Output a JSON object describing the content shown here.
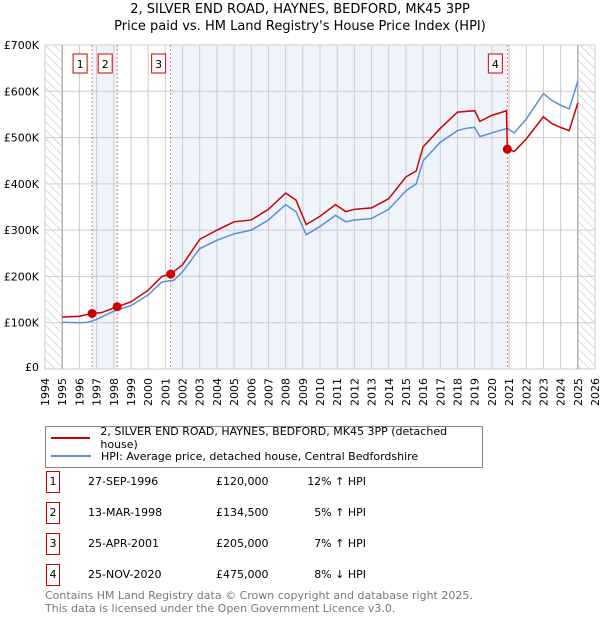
{
  "chart_data": {
    "type": "line",
    "title": "2, SILVER END ROAD, HAYNES, BEDFORD, MK45 3PP",
    "subtitle": "Price paid vs. HM Land Registry's House Price Index (HPI)",
    "xlim": [
      1994,
      2026
    ],
    "ylim": [
      0,
      700000
    ],
    "x_ticks": [
      "1994",
      "1995",
      "1996",
      "1997",
      "1998",
      "1999",
      "2000",
      "2001",
      "2002",
      "2003",
      "2004",
      "2005",
      "2006",
      "2007",
      "2008",
      "2009",
      "2010",
      "2011",
      "2012",
      "2013",
      "2014",
      "2015",
      "2016",
      "2017",
      "2018",
      "2019",
      "2020",
      "2021",
      "2022",
      "2023",
      "2024",
      "2025",
      "2026"
    ],
    "y_ticks": [
      {
        "v": 0,
        "label": "£0"
      },
      {
        "v": 100000,
        "label": "£100K"
      },
      {
        "v": 200000,
        "label": "£200K"
      },
      {
        "v": 300000,
        "label": "£300K"
      },
      {
        "v": 400000,
        "label": "£400K"
      },
      {
        "v": 500000,
        "label": "£500K"
      },
      {
        "v": 600000,
        "label": "£600K"
      },
      {
        "v": 700000,
        "label": "£700K"
      }
    ],
    "grid": true,
    "series": [
      {
        "name": "2, SILVER END ROAD, HAYNES, BEDFORD, MK45 3PP (detached house)",
        "color": "#cc0000",
        "points": [
          [
            1995,
            112000
          ],
          [
            1996,
            114000
          ],
          [
            1996.74,
            120000
          ],
          [
            1997.3,
            122000
          ],
          [
            1998.2,
            134500
          ],
          [
            1999,
            145000
          ],
          [
            2000,
            170000
          ],
          [
            2000.8,
            200000
          ],
          [
            2001.3,
            205000
          ],
          [
            2002,
            225000
          ],
          [
            2003,
            280000
          ],
          [
            2004,
            300000
          ],
          [
            2005,
            318000
          ],
          [
            2006,
            322000
          ],
          [
            2007,
            345000
          ],
          [
            2008,
            380000
          ],
          [
            2008.6,
            365000
          ],
          [
            2009.2,
            312000
          ],
          [
            2010,
            330000
          ],
          [
            2010.9,
            355000
          ],
          [
            2011.5,
            340000
          ],
          [
            2012,
            345000
          ],
          [
            2013,
            348000
          ],
          [
            2014,
            368000
          ],
          [
            2015,
            415000
          ],
          [
            2015.6,
            428000
          ],
          [
            2016,
            480000
          ],
          [
            2017,
            520000
          ],
          [
            2018,
            555000
          ],
          [
            2019,
            558000
          ],
          [
            2019.3,
            535000
          ],
          [
            2020,
            548000
          ],
          [
            2020.85,
            558000
          ],
          [
            2020.9,
            475000
          ],
          [
            2021.3,
            470000
          ],
          [
            2022,
            497000
          ],
          [
            2023,
            545000
          ],
          [
            2023.5,
            530000
          ],
          [
            2024,
            522000
          ],
          [
            2024.5,
            515000
          ],
          [
            2025,
            575000
          ]
        ]
      },
      {
        "name": "HPI: Average price, detached house, Central Bedfordshire",
        "color": "#5b8fd4",
        "points": [
          [
            1995,
            101000
          ],
          [
            1996,
            100000
          ],
          [
            1996.5,
            101000
          ],
          [
            1997,
            107000
          ],
          [
            1998,
            125000
          ],
          [
            1999,
            137000
          ],
          [
            2000,
            160000
          ],
          [
            2000.8,
            188000
          ],
          [
            2001.5,
            192000
          ],
          [
            2002,
            210000
          ],
          [
            2003,
            260000
          ],
          [
            2004,
            278000
          ],
          [
            2005,
            292000
          ],
          [
            2006,
            300000
          ],
          [
            2007,
            322000
          ],
          [
            2008,
            355000
          ],
          [
            2008.6,
            340000
          ],
          [
            2009.2,
            290000
          ],
          [
            2010,
            308000
          ],
          [
            2010.9,
            332000
          ],
          [
            2011.5,
            318000
          ],
          [
            2012,
            322000
          ],
          [
            2013,
            325000
          ],
          [
            2014,
            345000
          ],
          [
            2015,
            385000
          ],
          [
            2015.6,
            400000
          ],
          [
            2016,
            450000
          ],
          [
            2017,
            490000
          ],
          [
            2018,
            515000
          ],
          [
            2018.5,
            520000
          ],
          [
            2019,
            522000
          ],
          [
            2019.3,
            502000
          ],
          [
            2020,
            510000
          ],
          [
            2020.9,
            520000
          ],
          [
            2021.3,
            510000
          ],
          [
            2022,
            540000
          ],
          [
            2023,
            595000
          ],
          [
            2023.5,
            580000
          ],
          [
            2024,
            570000
          ],
          [
            2024.5,
            562000
          ],
          [
            2025,
            622000
          ]
        ]
      }
    ],
    "sales": [
      {
        "id": "1",
        "x": 1996.74,
        "date": "27-SEP-1996",
        "price": 120000,
        "price_label": "£120,000",
        "hpi": "12% ↑ HPI"
      },
      {
        "id": "2",
        "x": 1998.2,
        "date": "13-MAR-1998",
        "price": 134500,
        "price_label": "£134,500",
        "hpi": "5% ↑ HPI"
      },
      {
        "id": "3",
        "x": 2001.31,
        "date": "25-APR-2001",
        "price": 205000,
        "price_label": "£205,000",
        "hpi": "7% ↑ HPI"
      },
      {
        "id": "4",
        "x": 2020.9,
        "date": "25-NOV-2020",
        "price": 475000,
        "price_label": "£475,000",
        "hpi": "8% ↓ HPI"
      }
    ],
    "data_range": [
      1995,
      2025
    ],
    "legend_position": "below"
  },
  "footer": {
    "line1": "Contains HM Land Registry data © Crown copyright and database right 2025.",
    "line2": "This data is licensed under the Open Government Licence v3.0."
  }
}
